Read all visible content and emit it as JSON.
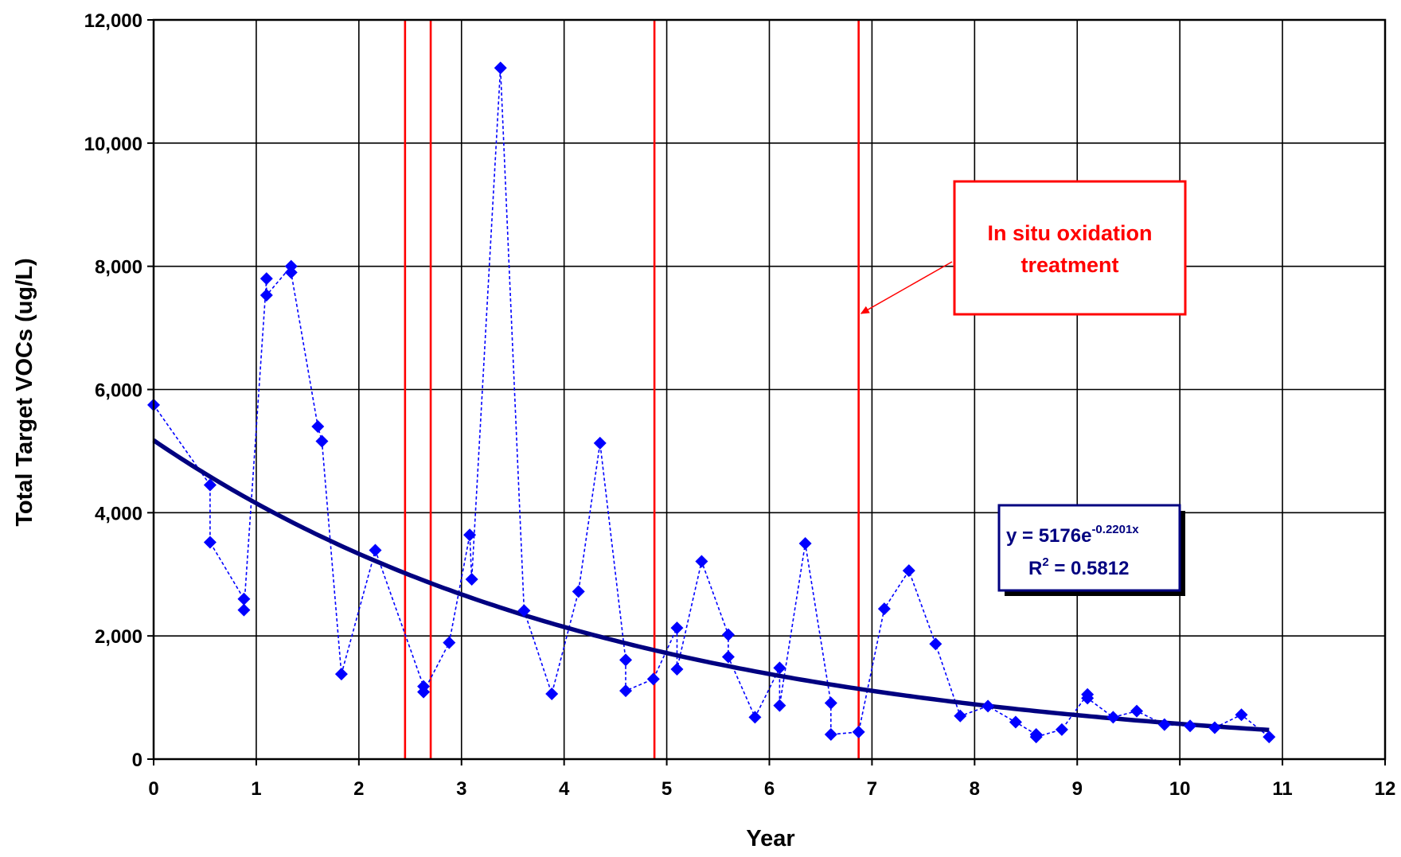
{
  "chart_data": {
    "type": "scatter",
    "xlabel": "Year",
    "ylabel": "Total Target VOCs (ug/L)",
    "xlim": [
      0,
      12
    ],
    "ylim": [
      0,
      12000
    ],
    "x_ticks": [
      0,
      1,
      2,
      3,
      4,
      5,
      6,
      7,
      8,
      9,
      10,
      11,
      12
    ],
    "x_tick_labels": [
      "0",
      "1",
      "2",
      "3",
      "4",
      "5",
      "6",
      "7",
      "8",
      "9",
      "10",
      "11",
      "12"
    ],
    "y_ticks": [
      0,
      2000,
      4000,
      6000,
      8000,
      10000,
      12000
    ],
    "y_tick_labels": [
      "0",
      "2,000",
      "4,000",
      "6,000",
      "8,000",
      "10,000",
      "12,000"
    ],
    "grid": true,
    "series": [
      {
        "style": "blue diamond markers joined by dotted line",
        "color": "#0000ff",
        "points": [
          [
            0.0,
            5750
          ],
          [
            0.55,
            4450
          ],
          [
            0.55,
            3520
          ],
          [
            0.88,
            2600
          ],
          [
            0.88,
            2420
          ],
          [
            1.1,
            7800
          ],
          [
            1.1,
            7530
          ],
          [
            1.34,
            8000
          ],
          [
            1.34,
            7900
          ],
          [
            1.6,
            5400
          ],
          [
            1.64,
            5160
          ],
          [
            1.83,
            1380
          ],
          [
            2.16,
            3390
          ],
          [
            2.63,
            1180
          ],
          [
            2.63,
            1090
          ],
          [
            2.88,
            1890
          ],
          [
            3.08,
            3640
          ],
          [
            3.1,
            2920
          ],
          [
            3.38,
            11220
          ],
          [
            3.61,
            2410
          ],
          [
            3.88,
            1060
          ],
          [
            4.14,
            2720
          ],
          [
            4.35,
            5130
          ],
          [
            4.6,
            1610
          ],
          [
            4.6,
            1110
          ],
          [
            4.87,
            1300
          ],
          [
            5.1,
            2130
          ],
          [
            5.1,
            1460
          ],
          [
            5.34,
            3210
          ],
          [
            5.6,
            2020
          ],
          [
            5.6,
            1660
          ],
          [
            5.86,
            680
          ],
          [
            6.1,
            1480
          ],
          [
            6.1,
            870
          ],
          [
            6.35,
            3500
          ],
          [
            6.6,
            910
          ],
          [
            6.6,
            400
          ],
          [
            6.87,
            440
          ],
          [
            7.12,
            2440
          ],
          [
            7.36,
            3060
          ],
          [
            7.62,
            1870
          ],
          [
            7.86,
            700
          ],
          [
            8.13,
            860
          ],
          [
            8.4,
            600
          ],
          [
            8.6,
            400
          ],
          [
            8.6,
            360
          ],
          [
            8.85,
            480
          ],
          [
            9.1,
            1050
          ],
          [
            9.1,
            990
          ],
          [
            9.35,
            680
          ],
          [
            9.58,
            780
          ],
          [
            9.85,
            560
          ],
          [
            10.1,
            540
          ],
          [
            10.34,
            510
          ],
          [
            10.6,
            720
          ],
          [
            10.87,
            360
          ]
        ]
      },
      {
        "style": "exponential trendline",
        "color": "#000080",
        "fit": {
          "a": 5176,
          "b": -0.2201
        },
        "x_range": [
          0,
          10.87
        ]
      }
    ],
    "vertical_lines": {
      "color": "#ff0000",
      "x": [
        2.45,
        2.7,
        4.88,
        6.87
      ]
    },
    "annotations": {
      "callout": {
        "lines": [
          "In situ oxidation",
          "treatment"
        ],
        "color": "#ff0000",
        "points_to_x": 6.87
      },
      "equation": {
        "line1_base": "y = 5176e",
        "line1_sup": "-0.2201x",
        "line2_base": "R",
        "line2_sup": "2",
        "line2_rest": " = 0.5812",
        "color": "#000080"
      }
    }
  }
}
